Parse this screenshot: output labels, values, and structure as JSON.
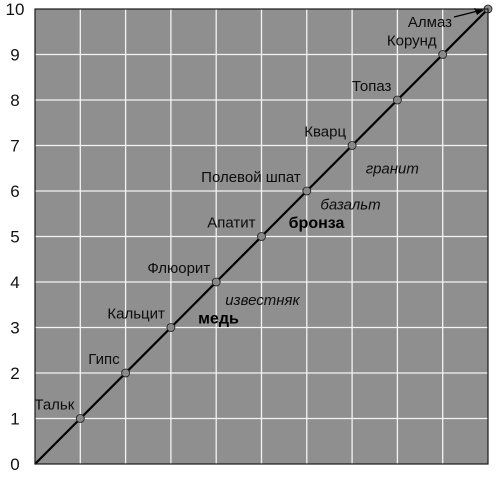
{
  "chart_data": {
    "type": "line",
    "xlim": [
      0,
      10
    ],
    "ylim": [
      0,
      10
    ],
    "grid": true,
    "colors": {
      "background": "#8f8f8f",
      "grid": "#f4f4f4",
      "line": "#000000",
      "point": "#8a8a8a"
    },
    "y_ticks": [
      "0",
      "1",
      "2",
      "3",
      "4",
      "5",
      "6",
      "7",
      "8",
      "9",
      "10"
    ],
    "series": [
      {
        "values": [
          0,
          1,
          2,
          3,
          4,
          5,
          6,
          7,
          8,
          9,
          10
        ],
        "x": [
          0,
          1,
          2,
          3,
          4,
          5,
          6,
          7,
          8,
          9,
          10
        ]
      }
    ],
    "mineral_labels": [
      {
        "text": "Тальк",
        "x": 1,
        "y": 1
      },
      {
        "text": "Гипс",
        "x": 2,
        "y": 2
      },
      {
        "text": "Кальцит",
        "x": 3,
        "y": 3
      },
      {
        "text": "Флюорит",
        "x": 4,
        "y": 4
      },
      {
        "text": "Апатит",
        "x": 5,
        "y": 5
      },
      {
        "text": "Полевой шпат",
        "x": 6,
        "y": 6
      },
      {
        "text": "Кварц",
        "x": 7,
        "y": 7
      },
      {
        "text": "Топаз",
        "x": 8,
        "y": 8
      },
      {
        "text": "Корунд",
        "x": 9,
        "y": 9
      },
      {
        "text": "Алмаз",
        "x": 10,
        "y": 10
      }
    ],
    "rock_labels": [
      {
        "text": "известняк",
        "x": 4.2,
        "y": 3.6
      },
      {
        "text": "базальт",
        "x": 6.3,
        "y": 5.7
      },
      {
        "text": "гранит",
        "x": 7.3,
        "y": 6.5
      }
    ],
    "metal_labels": [
      {
        "text": "медь",
        "x": 3.6,
        "y": 3.2
      },
      {
        "text": "бронза",
        "x": 5.6,
        "y": 5.3
      }
    ]
  }
}
